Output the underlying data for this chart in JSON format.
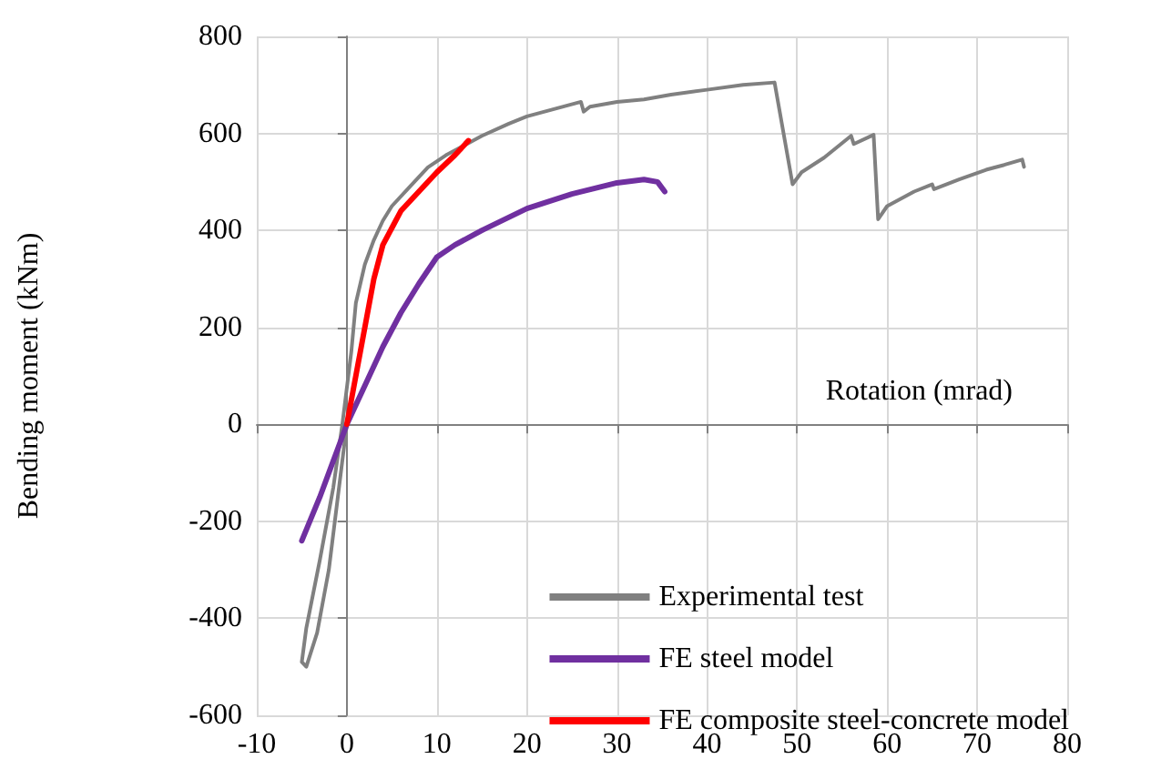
{
  "chart_data": {
    "type": "line",
    "xlabel": "Rotation (mrad)",
    "ylabel": "Bending moment (kNm)",
    "xlim": [
      -10,
      80
    ],
    "xticks": [
      -10,
      0,
      10,
      20,
      30,
      40,
      50,
      60,
      70,
      80
    ],
    "ylim": [
      -600,
      800
    ],
    "yticks": [
      -600,
      -400,
      -200,
      0,
      200,
      400,
      600,
      800
    ],
    "grid": true,
    "legend": "bottom right",
    "marker": "none",
    "line_style": "solid",
    "series": [
      {
        "name": "Experimental test",
        "color": "#808080",
        "x": [
          0,
          -1,
          -2,
          -3.3,
          -4.5,
          -5,
          -4.5,
          -3,
          -1.5,
          -0.5,
          0.5,
          1,
          2,
          3,
          4,
          5,
          7,
          9,
          11,
          13,
          15,
          18,
          20,
          23,
          26,
          26.3,
          27,
          30,
          33,
          36,
          40,
          44,
          47.5,
          49.5,
          50.5,
          53,
          56,
          56.3,
          58.5,
          59,
          60,
          63,
          65,
          65.2,
          68,
          71,
          73,
          75,
          75.2
        ],
        "values": [
          0,
          -150,
          -300,
          -430,
          -500,
          -490,
          -420,
          -280,
          -130,
          0,
          150,
          250,
          330,
          380,
          420,
          450,
          490,
          530,
          555,
          575,
          595,
          620,
          635,
          650,
          665,
          645,
          655,
          665,
          670,
          680,
          690,
          700,
          705,
          495,
          520,
          550,
          595,
          578,
          597,
          423,
          450,
          480,
          495,
          485,
          505,
          525,
          535,
          546,
          531
        ]
      },
      {
        "name": "FE steel model",
        "color": "#7030a0",
        "x": [
          -5,
          -3,
          -1,
          0,
          2,
          4,
          6,
          8,
          10,
          12,
          15,
          20,
          25,
          30,
          33,
          34.5,
          35.3
        ],
        "values": [
          -240,
          -150,
          -50,
          0,
          80,
          160,
          230,
          290,
          345,
          370,
          400,
          445,
          475,
          498,
          505,
          500,
          480
        ]
      },
      {
        "name": "FE composite steel-concrete model",
        "color": "#ff0000",
        "x": [
          0,
          1,
          2,
          3,
          4,
          5,
          6,
          8,
          10,
          12,
          13.5
        ],
        "values": [
          0,
          100,
          200,
          300,
          370,
          405,
          440,
          480,
          520,
          555,
          585
        ]
      }
    ]
  }
}
